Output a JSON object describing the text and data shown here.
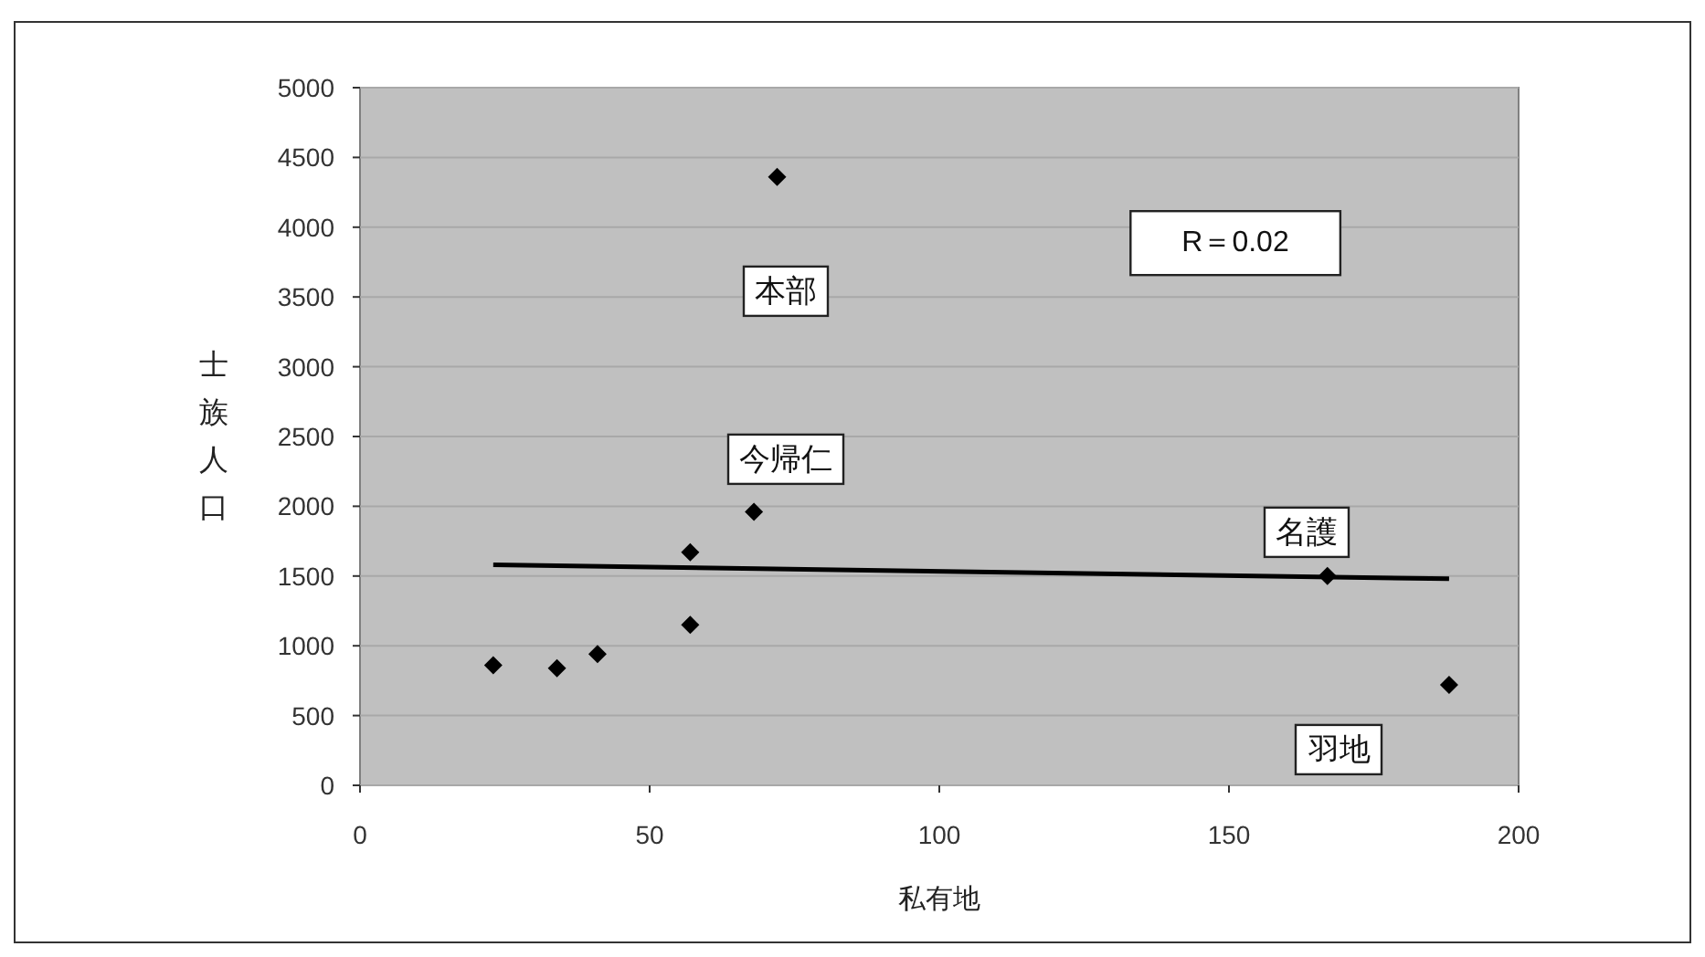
{
  "chart_data": {
    "type": "scatter",
    "xlabel": "私有地",
    "ylabel": "士族人口",
    "xlim": [
      0,
      200
    ],
    "xticks": [
      0,
      50,
      100,
      150,
      200
    ],
    "ylim": [
      0,
      5000
    ],
    "yticks": [
      0,
      500,
      1000,
      1500,
      2000,
      2500,
      3000,
      3500,
      4000,
      4500,
      5000
    ],
    "grid": "y",
    "series": [
      {
        "type": "scatter",
        "color": "#000000",
        "marker": "diamond",
        "x": [
          23,
          34,
          41,
          57,
          57,
          68,
          72,
          167,
          188
        ],
        "values": [
          860,
          840,
          940,
          1670,
          1150,
          1960,
          4360,
          1500,
          720
        ]
      },
      {
        "type": "line",
        "color": "#000000",
        "x": [
          23,
          188
        ],
        "values": [
          1580,
          1480
        ],
        "line_style": "solid"
      }
    ],
    "annotations": [
      "本部",
      "今帰仁",
      "名護",
      "羽地",
      "R＝0.02"
    ]
  }
}
